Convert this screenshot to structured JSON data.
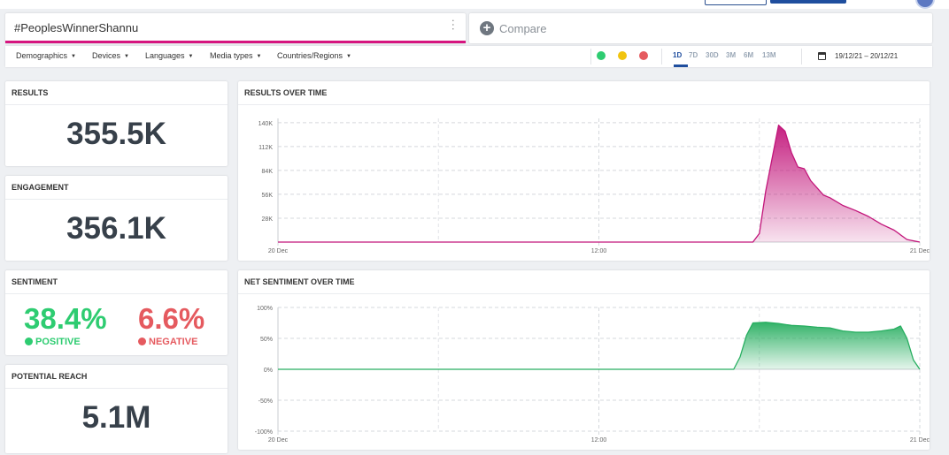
{
  "search": {
    "query": "#PeoplesWinnerShannu"
  },
  "compare": {
    "label": "Compare"
  },
  "filters": [
    "Demographics",
    "Devices",
    "Languages",
    "Media types",
    "Countries/Regions"
  ],
  "periods": [
    "1D",
    "7D",
    "30D",
    "3M",
    "6M",
    "13M"
  ],
  "active_period": "1D",
  "date_range": "19/12/21 – 20/12/21",
  "colors": {
    "accent": "#d6157f",
    "positive": "#2ecc71",
    "negative": "#e55a5f",
    "neutral": "#f1c40f",
    "brand": "#1f4e9e"
  },
  "results": {
    "title": "RESULTS",
    "value": "355.5K"
  },
  "engagement": {
    "title": "ENGAGEMENT",
    "value": "356.1K"
  },
  "sentiment": {
    "title": "SENTIMENT",
    "positive_pct": "38.4%",
    "positive_label": "POSITIVE",
    "negative_pct": "6.6%",
    "negative_label": "NEGATIVE"
  },
  "reach": {
    "title": "POTENTIAL REACH",
    "value": "5.1M"
  },
  "results_chart": {
    "title": "RESULTS OVER TIME"
  },
  "sentiment_chart": {
    "title": "NET SENTIMENT OVER TIME"
  },
  "chart_data": [
    {
      "type": "area",
      "title": "RESULTS OVER TIME",
      "x_ticks": [
        "20 Dec",
        "12:00",
        "21 Dec"
      ],
      "y_ticks": [
        "28K",
        "56K",
        "84K",
        "112K",
        "140K"
      ],
      "ylim": [
        0,
        145000
      ],
      "x": [
        0,
        0.1,
        0.2,
        0.3,
        0.4,
        0.5,
        0.6,
        0.65,
        0.69,
        0.71,
        0.74,
        0.75,
        0.76,
        0.78,
        0.79,
        0.8,
        0.81,
        0.82,
        0.83,
        0.85,
        0.86,
        0.88,
        0.9,
        0.92,
        0.94,
        0.96,
        0.98,
        1
      ],
      "values": [
        0,
        0,
        0,
        0,
        0,
        0,
        0,
        0,
        0,
        0,
        0,
        10000,
        60000,
        137000,
        130000,
        105000,
        88000,
        86000,
        72000,
        55000,
        52000,
        43000,
        37000,
        30000,
        21000,
        14000,
        3000,
        0
      ],
      "series_color": "#c2157a",
      "grid": true
    },
    {
      "type": "area",
      "title": "NET SENTIMENT OVER TIME",
      "x_ticks": [
        "20 Dec",
        "12:00",
        "21 Dec"
      ],
      "y_ticks": [
        "-100%",
        "-50%",
        "0%",
        "50%",
        "100%"
      ],
      "ylim": [
        -100,
        100
      ],
      "x": [
        0,
        0.2,
        0.4,
        0.6,
        0.7,
        0.71,
        0.72,
        0.73,
        0.74,
        0.76,
        0.78,
        0.8,
        0.82,
        0.84,
        0.86,
        0.88,
        0.9,
        0.92,
        0.94,
        0.96,
        0.97,
        0.98,
        0.99,
        1
      ],
      "values": [
        0,
        0,
        0,
        0,
        0,
        0,
        20,
        55,
        75,
        76,
        74,
        71,
        70,
        68,
        67,
        62,
        60,
        60,
        62,
        65,
        70,
        50,
        15,
        0
      ],
      "series_color": "#27ae60",
      "grid": true
    }
  ]
}
